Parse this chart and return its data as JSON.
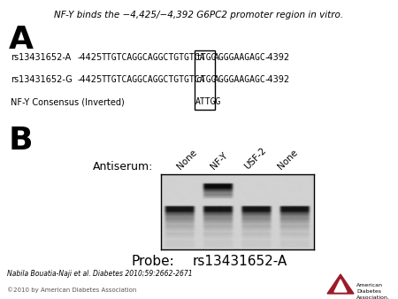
{
  "title": "NF-Y binds the −4,425/−4,392 G6PC2 promoter region in vitro.",
  "title_fontsize": 7.5,
  "panel_A_label": "A",
  "panel_B_label": "B",
  "row1_label": "rs13431652-A",
  "row1_pos": "-4425",
  "row1_seq_before": "TTGTCAGGCAGGCTGTGTCA",
  "row1_seq_box": "tTGG",
  "row1_seq_after": "AGGGAAGAGC",
  "row1_end": "-4392",
  "row2_label": "rs13431652-G",
  "row2_pos": "-4425",
  "row2_seq_before": "TTGTCAGGCAGGCTGTGTCA",
  "row2_seq_box": "cTGG",
  "row2_seq_after": "AGGGAAGAGC",
  "row2_end": "-4392",
  "row3_label": "NF-Y Consensus (Inverted)",
  "row3_seq_box": "ATTGG",
  "antiserum_label": "Antiserum:",
  "antiserum_labels": [
    "None",
    "NF-Y",
    "USF-2",
    "None"
  ],
  "probe_label": "Probe:",
  "probe_value": "rs13431652-A",
  "citation": "Nabila Bouatia-Naji et al. Diabetes 2010;59:2662-2671",
  "copyright": "©2010 by American Diabetes Association",
  "bg_color": "#ffffff",
  "text_color": "#000000"
}
